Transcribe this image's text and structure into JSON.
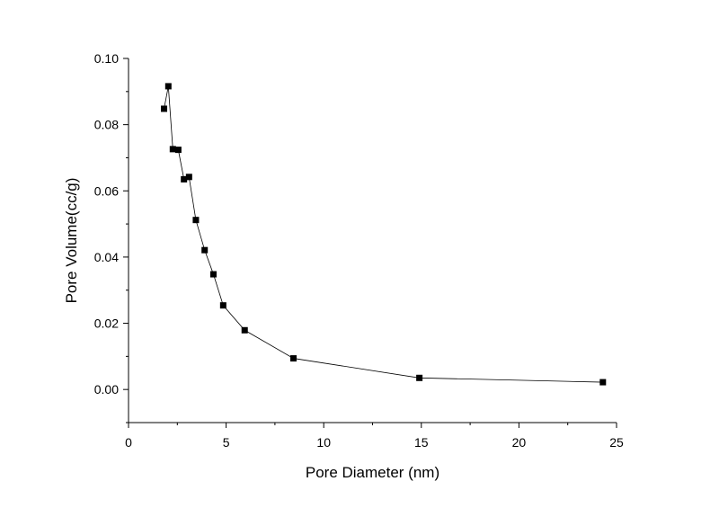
{
  "chart_data": {
    "type": "line",
    "title": "",
    "xlabel": "Pore Diameter (nm)",
    "ylabel": "Pore Volume(cc/g)",
    "xlim": [
      0,
      25
    ],
    "ylim": [
      -0.01,
      0.1
    ],
    "x_ticks": [
      0,
      5,
      10,
      15,
      20,
      25
    ],
    "x_tick_labels": [
      "0",
      "5",
      "10",
      "15",
      "20",
      "25"
    ],
    "y_ticks": [
      0.0,
      0.02,
      0.04,
      0.06,
      0.08,
      0.1
    ],
    "y_tick_labels": [
      "0.00",
      "0.02",
      "0.04",
      "0.06",
      "0.08",
      "0.10"
    ],
    "grid": false,
    "legend": "none",
    "marker": "square",
    "series_color": "#000000",
    "series": [
      {
        "x": [
          1.82,
          2.04,
          2.27,
          2.55,
          2.84,
          3.1,
          3.45,
          3.9,
          4.35,
          4.85,
          5.95,
          8.45,
          14.9,
          24.3
        ],
        "y": [
          0.0848,
          0.0916,
          0.0726,
          0.0724,
          0.0635,
          0.0642,
          0.0512,
          0.0421,
          0.0348,
          0.0254,
          0.0179,
          0.0094,
          0.0035,
          0.0022
        ]
      }
    ]
  }
}
